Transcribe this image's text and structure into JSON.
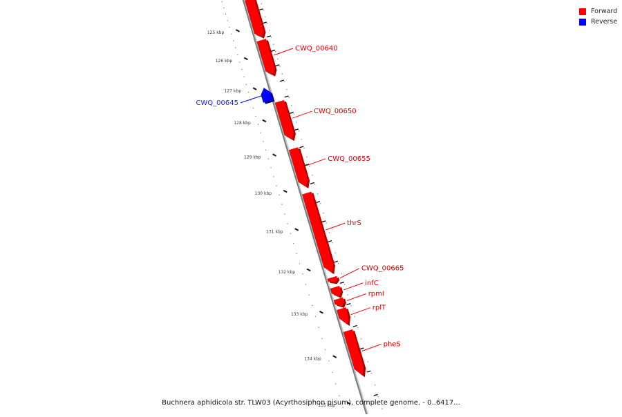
{
  "legend": {
    "forward_label": "Forward",
    "reverse_label": "Reverse",
    "forward_color": "#ff0000",
    "reverse_color": "#0000ff"
  },
  "caption": "Buchnera aphidicola str. TLW03 (Acyrthosiphon pisum), complete genome. - 0..6417...",
  "map": {
    "ticks": [
      {
        "kbp": 125,
        "label": "125 kbp"
      },
      {
        "kbp": 126,
        "label": "126 kbp"
      },
      {
        "kbp": 127,
        "label": "127 kbp"
      },
      {
        "kbp": 128,
        "label": "128 kbp"
      },
      {
        "kbp": 129,
        "label": "129 kbp"
      },
      {
        "kbp": 130,
        "label": "130 kbp"
      },
      {
        "kbp": 131,
        "label": "131 kbp"
      },
      {
        "kbp": 132,
        "label": "132 kbp"
      },
      {
        "kbp": 133,
        "label": "133 kbp"
      },
      {
        "kbp": 134,
        "label": "134 kbp"
      },
      {
        "kbp": 135,
        "label": "135 kbp"
      }
    ],
    "genes": [
      {
        "name": "",
        "strand": "forward",
        "start_kbp": 124.0,
        "end_kbp": 125.45
      },
      {
        "name": "CWQ_00640",
        "strand": "forward",
        "start_kbp": 125.55,
        "end_kbp": 126.75
      },
      {
        "name": "CWQ_00645",
        "strand": "reverse",
        "start_kbp": 127.05,
        "end_kbp": 127.48
      },
      {
        "name": "CWQ_00650",
        "strand": "forward",
        "start_kbp": 127.58,
        "end_kbp": 128.73
      },
      {
        "name": "CWQ_00655",
        "strand": "forward",
        "start_kbp": 128.98,
        "end_kbp": 130.05
      },
      {
        "name": "thrS",
        "strand": "forward",
        "start_kbp": 130.2,
        "end_kbp": 132.22
      },
      {
        "name": "CWQ_00665",
        "strand": "forward",
        "start_kbp": 132.32,
        "end_kbp": 132.45
      },
      {
        "name": "infC",
        "strand": "forward",
        "start_kbp": 132.55,
        "end_kbp": 132.78
      },
      {
        "name": "rpmI",
        "strand": "forward",
        "start_kbp": 132.82,
        "end_kbp": 133.01
      },
      {
        "name": "rplT",
        "strand": "forward",
        "start_kbp": 133.05,
        "end_kbp": 133.42
      },
      {
        "name": "pheS",
        "strand": "forward",
        "start_kbp": 133.55,
        "end_kbp": 134.55
      }
    ]
  }
}
